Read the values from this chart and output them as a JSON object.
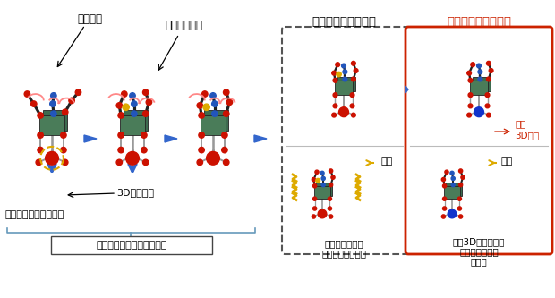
{
  "bg_color": "#ffffff",
  "labels": {
    "grasp_object": "抓握対象",
    "finger_contact": "与手指的接触",
    "linear_drive": "基于直线致动器的驱动",
    "flexible_3d": "3D柔性单元",
    "caption_box": "能应对复杂形状的抓握物体",
    "old_tech": "仅利用以往技术时以",
    "new_tech": "増加可変刚性机构时",
    "lock_3d": "锁定\n3D摇动",
    "outer_force1": "外力",
    "outer_force2": "外力",
    "desc1_l1": "由于具有柔性，",
    "desc1_l2": "容易受外力影响。",
    "desc2_l1": "改变3D柔性单元的",
    "desc2_l2": "刚性，降低外力",
    "desc2_l3": "影响。"
  },
  "colors": {
    "green_dark": "#3d6b4f",
    "green_mid": "#4a7c59",
    "red_ball": "#cc1100",
    "blue_ball": "#1133cc",
    "blue_finger": "#2255bb",
    "yellow_ball": "#ddaa00",
    "gray_rod": "#999999",
    "dark_rod": "#222222",
    "arrow_blue": "#3366cc",
    "red_border": "#cc2200",
    "gray_border": "#555555",
    "bracket_blue": "#6699bb",
    "yellow_wavy": "#ddaa00",
    "pink_arc": "#ff8888"
  }
}
